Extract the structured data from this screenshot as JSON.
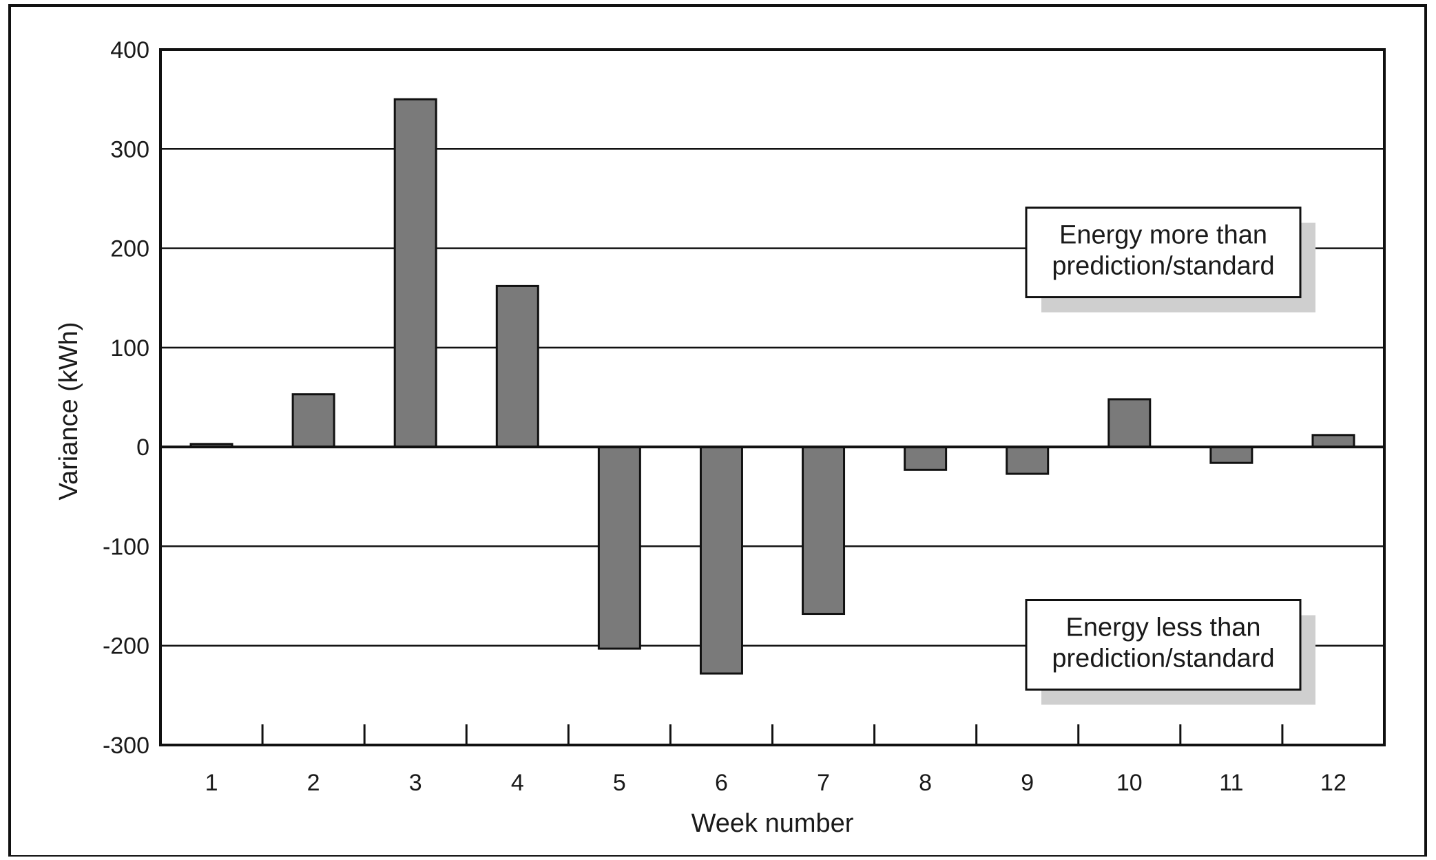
{
  "chart_data": {
    "type": "bar",
    "title": "",
    "xlabel": "Week number",
    "ylabel": "Variance (kWh)",
    "categories": [
      "1",
      "2",
      "3",
      "4",
      "5",
      "6",
      "7",
      "8",
      "9",
      "10",
      "11",
      "12"
    ],
    "values": [
      3,
      53,
      350,
      162,
      -203,
      -228,
      -168,
      -23,
      -27,
      48,
      -16,
      12
    ],
    "ylim": [
      -300,
      400
    ],
    "yticks": [
      "-300",
      "-200",
      "-100",
      "0",
      "100",
      "200",
      "300",
      "400"
    ],
    "grid": true,
    "colors": {
      "bar": "#7a7a7a",
      "bar_stroke": "#111111",
      "grid": "#111111",
      "annotation_shadow": "#cfcfcf"
    },
    "annotations": [
      {
        "lines": [
          "Energy more than",
          "prediction/standard"
        ],
        "anchor_value": 200,
        "placement": "upper-right"
      },
      {
        "lines": [
          "Energy less than",
          "prediction/standard"
        ],
        "anchor_value": -195,
        "placement": "lower-right"
      }
    ]
  }
}
